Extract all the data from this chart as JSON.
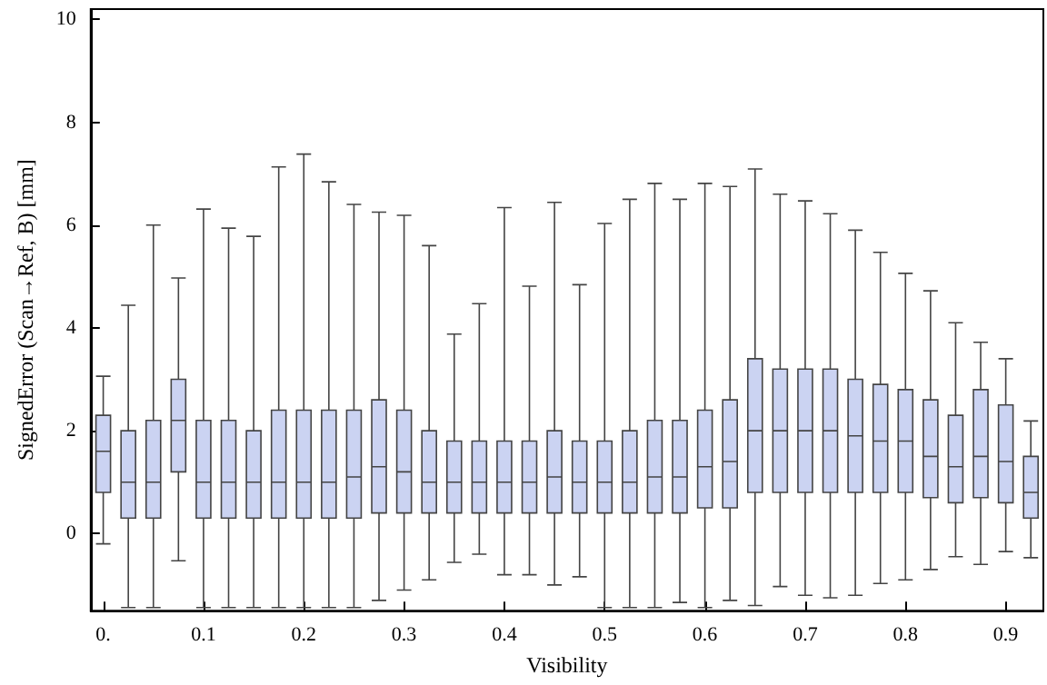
{
  "chart_data": {
    "type": "box",
    "xlabel": "Visibility",
    "ylabel": "SignedError (Scan→Ref, B) [mm]",
    "color": "#cbd3f2",
    "categories": [
      "0.",
      null,
      null,
      null,
      "0.1",
      null,
      null,
      null,
      "0.2",
      null,
      null,
      null,
      "0.3",
      null,
      null,
      null,
      "0.4",
      null,
      null,
      null,
      "0.5",
      null,
      null,
      null,
      "0.6",
      null,
      null,
      null,
      "0.7",
      null,
      null,
      null,
      "0.8",
      null,
      null,
      null,
      "0.9",
      null
    ],
    "boxes": [
      {
        "low": -0.2,
        "q1": 0.8,
        "median": 1.6,
        "q3": 2.3,
        "high": 3.06
      },
      {
        "low": -1.44,
        "q1": 0.3,
        "median": 1.0,
        "q3": 2.0,
        "high": 4.44
      },
      {
        "low": -1.44,
        "q1": 0.3,
        "median": 1.0,
        "q3": 2.2,
        "high": 6.0
      },
      {
        "low": -0.53,
        "q1": 1.2,
        "median": 2.2,
        "q3": 3.0,
        "high": 4.97
      },
      {
        "low": -1.44,
        "q1": 0.3,
        "median": 1.0,
        "q3": 2.2,
        "high": 6.31
      },
      {
        "low": -1.44,
        "q1": 0.3,
        "median": 1.0,
        "q3": 2.2,
        "high": 5.94
      },
      {
        "low": -1.44,
        "q1": 0.3,
        "median": 1.0,
        "q3": 2.0,
        "high": 5.78
      },
      {
        "low": -1.44,
        "q1": 0.3,
        "median": 1.0,
        "q3": 2.4,
        "high": 7.13
      },
      {
        "low": -1.44,
        "q1": 0.3,
        "median": 1.0,
        "q3": 2.4,
        "high": 7.38
      },
      {
        "low": -1.44,
        "q1": 0.3,
        "median": 1.0,
        "q3": 2.4,
        "high": 6.84
      },
      {
        "low": -1.44,
        "q1": 0.3,
        "median": 1.1,
        "q3": 2.4,
        "high": 6.4
      },
      {
        "low": -1.3,
        "q1": 0.4,
        "median": 1.3,
        "q3": 2.6,
        "high": 6.25
      },
      {
        "low": -1.1,
        "q1": 0.4,
        "median": 1.2,
        "q3": 2.4,
        "high": 6.19
      },
      {
        "low": -0.9,
        "q1": 0.4,
        "median": 1.0,
        "q3": 2.0,
        "high": 5.6
      },
      {
        "low": -0.56,
        "q1": 0.4,
        "median": 1.0,
        "q3": 1.8,
        "high": 3.88
      },
      {
        "low": -0.4,
        "q1": 0.4,
        "median": 1.0,
        "q3": 1.8,
        "high": 4.47
      },
      {
        "low": -0.8,
        "q1": 0.4,
        "median": 1.0,
        "q3": 1.8,
        "high": 6.34
      },
      {
        "low": -0.8,
        "q1": 0.4,
        "median": 1.0,
        "q3": 1.8,
        "high": 4.81
      },
      {
        "low": -1.0,
        "q1": 0.4,
        "median": 1.1,
        "q3": 2.0,
        "high": 6.44
      },
      {
        "low": -0.84,
        "q1": 0.4,
        "median": 1.0,
        "q3": 1.8,
        "high": 4.84
      },
      {
        "low": -1.44,
        "q1": 0.4,
        "median": 1.0,
        "q3": 1.8,
        "high": 6.03
      },
      {
        "low": -1.44,
        "q1": 0.4,
        "median": 1.0,
        "q3": 2.0,
        "high": 6.5
      },
      {
        "low": -1.44,
        "q1": 0.4,
        "median": 1.1,
        "q3": 2.2,
        "high": 6.81
      },
      {
        "low": -1.34,
        "q1": 0.4,
        "median": 1.1,
        "q3": 2.2,
        "high": 6.5
      },
      {
        "low": -1.44,
        "q1": 0.5,
        "median": 1.3,
        "q3": 2.4,
        "high": 6.81
      },
      {
        "low": -1.3,
        "q1": 0.5,
        "median": 1.4,
        "q3": 2.6,
        "high": 6.75
      },
      {
        "low": -1.4,
        "q1": 0.8,
        "median": 2.0,
        "q3": 3.4,
        "high": 7.09
      },
      {
        "low": -1.03,
        "q1": 0.8,
        "median": 2.0,
        "q3": 3.2,
        "high": 6.6
      },
      {
        "low": -1.2,
        "q1": 0.8,
        "median": 2.0,
        "q3": 3.2,
        "high": 6.47
      },
      {
        "low": -1.25,
        "q1": 0.8,
        "median": 2.0,
        "q3": 3.2,
        "high": 6.22
      },
      {
        "low": -1.2,
        "q1": 0.8,
        "median": 1.9,
        "q3": 3.0,
        "high": 5.9
      },
      {
        "low": -0.97,
        "q1": 0.8,
        "median": 1.8,
        "q3": 2.9,
        "high": 5.47
      },
      {
        "low": -0.9,
        "q1": 0.8,
        "median": 1.8,
        "q3": 2.8,
        "high": 5.06
      },
      {
        "low": -0.7,
        "q1": 0.7,
        "median": 1.5,
        "q3": 2.6,
        "high": 4.72
      },
      {
        "low": -0.45,
        "q1": 0.6,
        "median": 1.3,
        "q3": 2.3,
        "high": 4.1
      },
      {
        "low": -0.6,
        "q1": 0.7,
        "median": 1.5,
        "q3": 2.8,
        "high": 3.72
      },
      {
        "low": -0.35,
        "q1": 0.6,
        "median": 1.4,
        "q3": 2.5,
        "high": 3.4
      },
      {
        "low": -0.47,
        "q1": 0.3,
        "median": 0.8,
        "q3": 1.5,
        "high": 2.19
      }
    ],
    "ylim": [
      -1.5,
      10.2
    ],
    "yticks": [
      0,
      2,
      4,
      6,
      8,
      10
    ],
    "grid": false
  }
}
